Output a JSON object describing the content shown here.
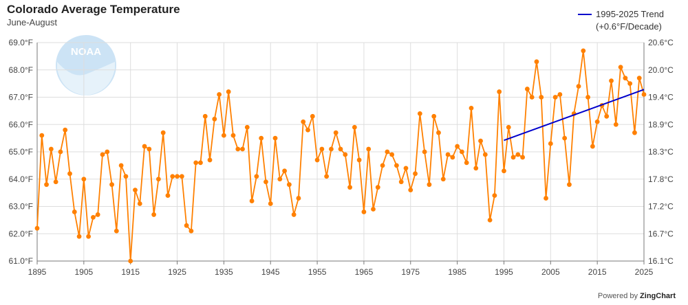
{
  "title": "Colorado Average Temperature",
  "subtitle": "June-August",
  "legend": {
    "label_line1": "1995-2025 Trend",
    "label_line2": "(+0.6°F/Decade)"
  },
  "logo_text": "NOAA",
  "powered": {
    "prefix": "Powered by",
    "brand": "ZingChart"
  },
  "chart_data": {
    "type": "line",
    "x_range": [
      1895,
      2025
    ],
    "ylim": [
      61,
      69
    ],
    "y_ticks": [
      61,
      62,
      63,
      64,
      65,
      66,
      67,
      68,
      69
    ],
    "y_tick_labels": [
      "61.0°F",
      "62.0°F",
      "63.0°F",
      "64.0°F",
      "65.0°F",
      "66.0°F",
      "67.0°F",
      "68.0°F",
      "69.0°F"
    ],
    "y2_tick_labels": [
      "16.1°C",
      "16.7°C",
      "17.2°C",
      "17.8°C",
      "18.3°C",
      "18.9°C",
      "19.4°C",
      "20.0°C",
      "20.6°C"
    ],
    "x_ticks": [
      1895,
      1905,
      1915,
      1925,
      1935,
      1945,
      1955,
      1965,
      1975,
      1985,
      1995,
      2005,
      2015,
      2025
    ],
    "grid": true,
    "series": [
      {
        "color": "#ff8000",
        "values": [
          62.2,
          65.6,
          63.8,
          65.1,
          63.9,
          65.0,
          65.8,
          64.2,
          62.8,
          61.9,
          64.0,
          61.9,
          62.6,
          62.7,
          64.9,
          65.0,
          63.8,
          62.1,
          64.5,
          64.1,
          61.0,
          63.6,
          63.1,
          65.2,
          65.1,
          62.7,
          64.0,
          65.7,
          63.4,
          64.1,
          64.1,
          64.1,
          62.3,
          62.1,
          64.6,
          64.6,
          66.3,
          64.7,
          66.2,
          67.1,
          65.6,
          67.2,
          65.6,
          65.1,
          65.1,
          65.9,
          63.2,
          64.1,
          65.5,
          63.9,
          63.1,
          65.5,
          64.0,
          64.3,
          63.8,
          62.7,
          63.3,
          66.1,
          65.8,
          66.3,
          64.7,
          65.1,
          64.1,
          65.1,
          65.7,
          65.1,
          64.9,
          63.7,
          65.9,
          64.7,
          62.8,
          65.1,
          62.9,
          63.7,
          64.5,
          65.0,
          64.9,
          64.5,
          63.9,
          64.4,
          63.6,
          64.2,
          66.4,
          65.0,
          63.8,
          66.3,
          65.7,
          64.0,
          64.9,
          64.8,
          65.2,
          65.0,
          64.6,
          66.6,
          64.4,
          65.4,
          64.9,
          62.5,
          63.4,
          67.2,
          64.3,
          65.9,
          64.8,
          64.9,
          64.8,
          67.3,
          67.0,
          68.3,
          67.0,
          63.3,
          65.3,
          67.0,
          67.1,
          65.5,
          63.8,
          66.4,
          67.4,
          68.7,
          67.0,
          65.2,
          66.1,
          66.7,
          66.3,
          67.6,
          66.0,
          68.1,
          67.7,
          67.5,
          65.7,
          67.7,
          67.1
        ]
      },
      {
        "name": "1995-2025 Trend",
        "color": "#0000cc",
        "x": [
          1995,
          2025
        ],
        "values": [
          65.42,
          67.28
        ]
      }
    ]
  }
}
